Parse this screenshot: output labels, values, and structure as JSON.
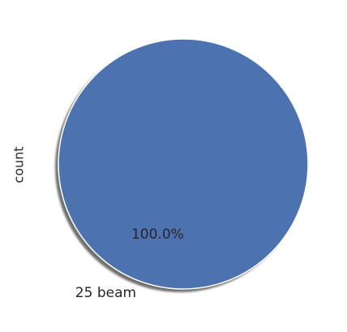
{
  "chart_data": {
    "type": "pie",
    "title": "",
    "ylabel": "count",
    "slices": [
      {
        "label": "25 beam",
        "value": 1,
        "percent_label": "100.0%",
        "color": "#4c72b0"
      }
    ],
    "shadow": true,
    "autopct": true
  }
}
